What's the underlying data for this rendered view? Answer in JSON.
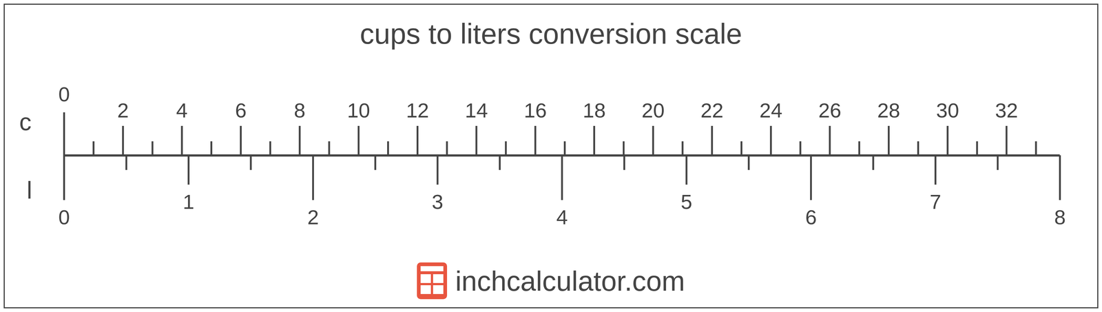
{
  "chart_data": {
    "type": "conversion_scale",
    "title": "cups to liters conversion scale",
    "x2label": "c",
    "x2lim": [
      0,
      33.814
    ],
    "x2ticks": [
      0,
      2,
      4,
      6,
      8,
      10,
      12,
      14,
      16,
      18,
      20,
      22,
      24,
      26,
      28,
      30,
      32
    ],
    "x2minor_ticks": [
      1,
      3,
      5,
      7,
      9,
      11,
      13,
      15,
      17,
      19,
      21,
      23,
      25,
      27,
      29,
      31,
      33
    ],
    "xlabel": "l",
    "xlim": [
      0,
      8
    ],
    "xticks": [
      0,
      1,
      2,
      3,
      4,
      5,
      6,
      7,
      8
    ],
    "xminor_ticks": [
      0.5,
      1.5,
      2.5,
      3.5,
      4.5,
      5.5,
      6.5,
      7.5
    ],
    "source": "inchcalculator.com"
  }
}
